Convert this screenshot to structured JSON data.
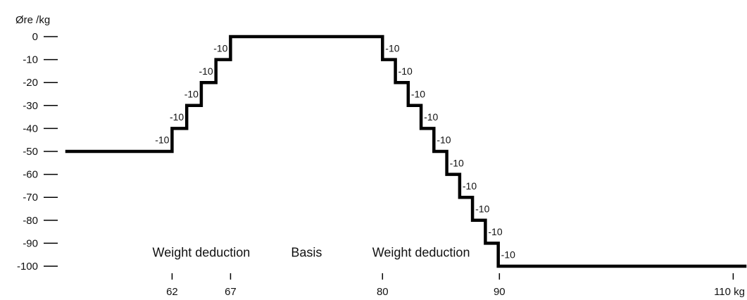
{
  "chart_data": {
    "type": "line",
    "ylabel": "Øre /kg",
    "xunit": "kg",
    "ylim": [
      -100,
      0
    ],
    "xlim": [
      53,
      111
    ],
    "grid": false,
    "colors": {
      "line": "#000000",
      "text": "#111111",
      "background": "#ffffff"
    },
    "yticks": [
      {
        "value": 0,
        "label": "0"
      },
      {
        "value": -10,
        "label": "-10"
      },
      {
        "value": -20,
        "label": "-20"
      },
      {
        "value": -30,
        "label": "-30"
      },
      {
        "value": -40,
        "label": "-40"
      },
      {
        "value": -50,
        "label": "-50"
      },
      {
        "value": -60,
        "label": "-60"
      },
      {
        "value": -70,
        "label": "-70"
      },
      {
        "value": -80,
        "label": "-80"
      },
      {
        "value": -90,
        "label": "-90"
      },
      {
        "value": -100,
        "label": "-100"
      }
    ],
    "xticks": [
      {
        "value": 62,
        "label": "62"
      },
      {
        "value": 67,
        "label": "67"
      },
      {
        "value": 80,
        "label": "80"
      },
      {
        "value": 90,
        "label": "90"
      },
      {
        "value": 110,
        "label": "110 kg"
      }
    ],
    "series": [
      {
        "points": [
          [
            53,
            -50
          ],
          [
            62,
            -50
          ],
          [
            62,
            -40
          ],
          [
            63.25,
            -40
          ],
          [
            63.25,
            -30
          ],
          [
            64.5,
            -30
          ],
          [
            64.5,
            -20
          ],
          [
            65.75,
            -20
          ],
          [
            65.75,
            -10
          ],
          [
            67,
            -10
          ],
          [
            67,
            0
          ],
          [
            80,
            0
          ],
          [
            80,
            -10
          ],
          [
            81.1,
            -10
          ],
          [
            81.1,
            -20
          ],
          [
            82.2,
            -20
          ],
          [
            82.2,
            -30
          ],
          [
            83.3,
            -30
          ],
          [
            83.3,
            -40
          ],
          [
            84.4,
            -40
          ],
          [
            84.4,
            -50
          ],
          [
            85.5,
            -50
          ],
          [
            85.5,
            -60
          ],
          [
            86.6,
            -60
          ],
          [
            86.6,
            -70
          ],
          [
            87.7,
            -70
          ],
          [
            87.7,
            -80
          ],
          [
            88.8,
            -80
          ],
          [
            88.8,
            -90
          ],
          [
            89.9,
            -90
          ],
          [
            89.9,
            -100
          ],
          [
            111,
            -100
          ]
        ]
      }
    ],
    "step_annotations": [
      {
        "x": 62,
        "y": -45,
        "side": "left",
        "text": "-10"
      },
      {
        "x": 63.25,
        "y": -35,
        "side": "left",
        "text": "-10"
      },
      {
        "x": 64.5,
        "y": -25,
        "side": "left",
        "text": "-10"
      },
      {
        "x": 65.75,
        "y": -15,
        "side": "left",
        "text": "-10"
      },
      {
        "x": 67,
        "y": -5,
        "side": "left",
        "text": "-10"
      },
      {
        "x": 80,
        "y": -5,
        "side": "right",
        "text": "-10"
      },
      {
        "x": 81.1,
        "y": -15,
        "side": "right",
        "text": "-10"
      },
      {
        "x": 82.2,
        "y": -25,
        "side": "right",
        "text": "-10"
      },
      {
        "x": 83.3,
        "y": -35,
        "side": "right",
        "text": "-10"
      },
      {
        "x": 84.4,
        "y": -45,
        "side": "right",
        "text": "-10"
      },
      {
        "x": 85.5,
        "y": -55,
        "side": "right",
        "text": "-10"
      },
      {
        "x": 86.6,
        "y": -65,
        "side": "right",
        "text": "-10"
      },
      {
        "x": 87.7,
        "y": -75,
        "side": "right",
        "text": "-10"
      },
      {
        "x": 88.8,
        "y": -85,
        "side": "right",
        "text": "-10"
      },
      {
        "x": 89.9,
        "y": -95,
        "side": "right",
        "text": "-10"
      }
    ],
    "region_labels": [
      {
        "text": "Weight deduction",
        "x": 64.5,
        "y": -94
      },
      {
        "text": "Basis",
        "x": 73.5,
        "y": -94
      },
      {
        "text": "Weight deduction",
        "x": 83.3,
        "y": -94
      }
    ]
  }
}
